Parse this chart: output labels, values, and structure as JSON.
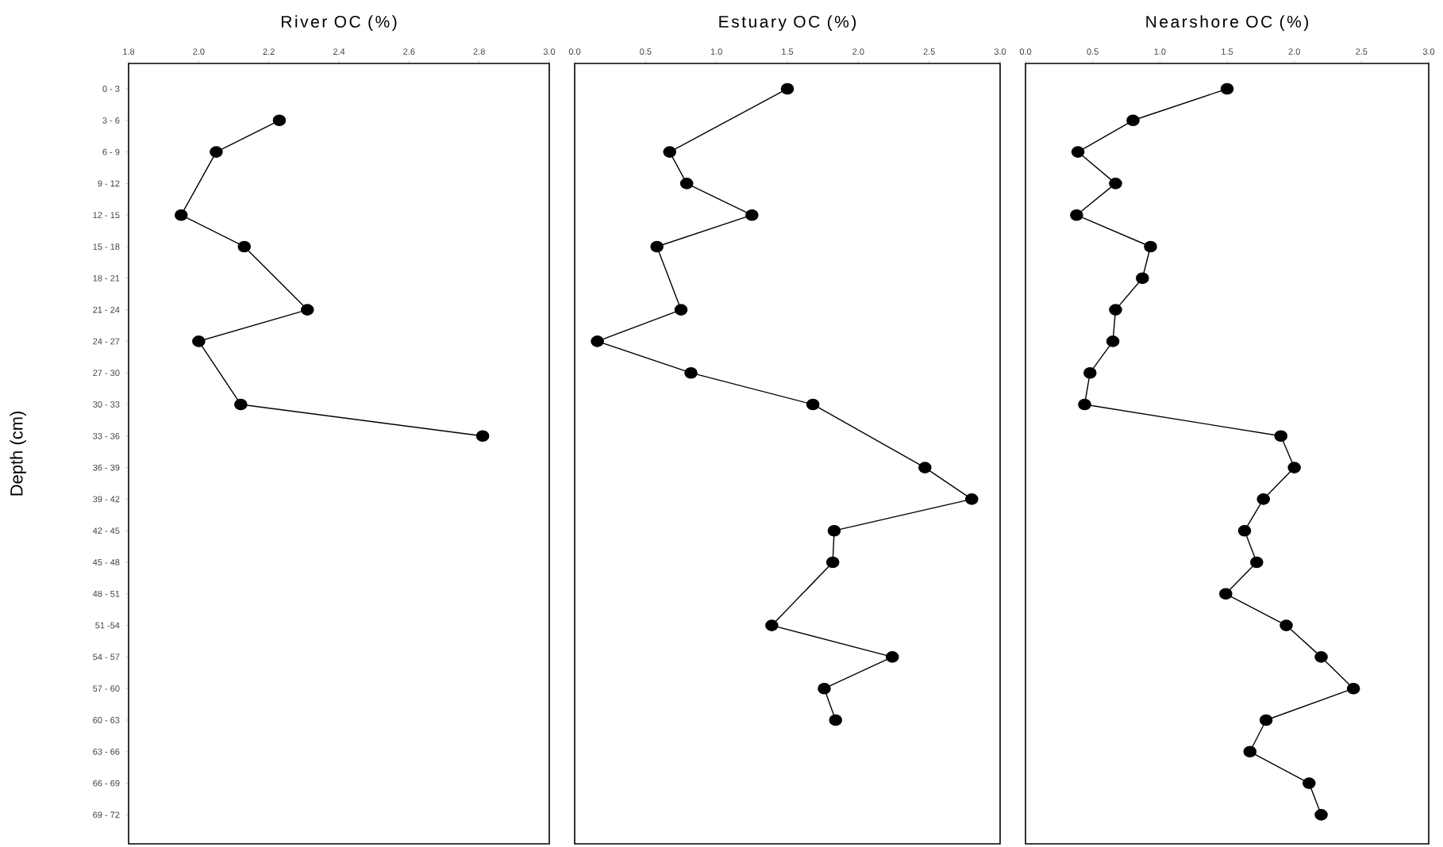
{
  "chart_data": [
    {
      "type": "line",
      "title": "River OC (%)",
      "ylabel": "Depth (cm)",
      "orientation": "horizontal",
      "marker": "circle",
      "color": "#000000",
      "categories": [
        "0 - 3",
        "3 - 6",
        "6 - 9",
        "9 - 12",
        "12 - 15",
        "15 - 18",
        "18 - 21",
        "21 - 24",
        "24 - 27",
        "27 - 30",
        "30 - 33",
        "33 - 36",
        "36 - 39",
        "39 - 42",
        "42 - 45",
        "45 - 48",
        "48 - 51",
        "51 -54",
        "54 - 57",
        "57 - 60",
        "60 - 63",
        "63 - 66",
        "66 - 69",
        "69 - 72"
      ],
      "values": [
        null,
        2.23,
        2.05,
        null,
        1.95,
        2.13,
        null,
        2.31,
        2.0,
        null,
        2.12,
        2.81,
        null,
        null,
        null,
        null,
        null,
        null,
        null,
        null,
        null,
        null,
        null,
        null
      ],
      "xlim": [
        1.8,
        3.0
      ],
      "xticks": [
        1.8,
        {
          "value": 2.0,
          "label": "2.0"
        },
        2.2,
        2.4,
        2.6,
        2.8,
        {
          "value": 3.0,
          "label": "3.0"
        }
      ]
    },
    {
      "type": "line",
      "title": "Estuary OC (%)",
      "orientation": "horizontal",
      "marker": "circle",
      "color": "#000000",
      "tick_labels": "x",
      "categories": [
        null,
        null,
        null,
        null,
        null,
        null,
        null,
        null,
        null,
        null,
        null,
        null,
        null,
        null,
        null,
        null,
        null,
        null,
        null,
        null,
        null,
        null,
        null,
        null
      ],
      "values": [
        1.5,
        null,
        0.67,
        0.79,
        1.25,
        0.58,
        null,
        0.75,
        0.16,
        0.82,
        1.68,
        null,
        2.47,
        2.8,
        1.83,
        1.82,
        null,
        1.39,
        2.24,
        1.76,
        1.84,
        null,
        null,
        null
      ],
      "xlim": [
        0.0,
        3.0
      ],
      "xticks": [
        {
          "value": 0,
          "label": "0.0"
        },
        0.5,
        {
          "value": 1,
          "label": "1.0"
        },
        1.5,
        {
          "value": 2,
          "label": "2.0"
        },
        2.5,
        {
          "value": 3,
          "label": "3.0"
        }
      ]
    },
    {
      "type": "line",
      "title": "Nearshore OC (%)",
      "orientation": "horizontal",
      "marker": "circle",
      "color": "#000000",
      "tick_labels": "x",
      "categories": [
        null,
        null,
        null,
        null,
        null,
        null,
        null,
        null,
        null,
        null,
        null,
        null,
        null,
        null,
        null,
        null,
        null,
        null,
        null,
        null,
        null,
        null,
        null,
        null
      ],
      "values": [
        1.5,
        0.8,
        0.39,
        0.67,
        0.38,
        0.93,
        0.87,
        0.67,
        0.65,
        0.48,
        0.44,
        1.9,
        2.0,
        1.77,
        1.63,
        1.72,
        1.49,
        1.94,
        2.2,
        2.44,
        1.79,
        1.67,
        2.11,
        2.2
      ],
      "xlim": [
        0.0,
        3.0
      ],
      "xticks": [
        {
          "value": 0,
          "label": "0.0"
        },
        0.5,
        {
          "value": 1,
          "label": "1.0"
        },
        1.5,
        {
          "value": 2,
          "label": "2.0"
        },
        2.5,
        {
          "value": 3,
          "label": "3.0"
        }
      ]
    }
  ]
}
